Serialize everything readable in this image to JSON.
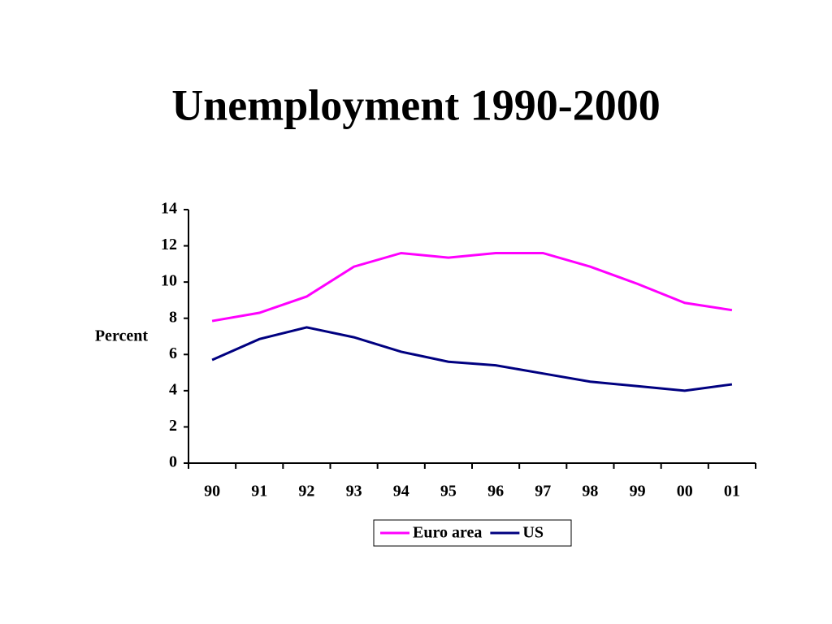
{
  "chart_data": {
    "type": "line",
    "title": "Unemployment 1990-2000",
    "y_label": "Percent",
    "categories": [
      "90",
      "91",
      "92",
      "93",
      "94",
      "95",
      "96",
      "97",
      "98",
      "99",
      "00",
      "01"
    ],
    "series": [
      {
        "name": "Euro area",
        "color": "#ff00ff",
        "values": [
          7.85,
          8.3,
          9.2,
          10.85,
          11.6,
          11.35,
          11.6,
          11.6,
          10.85,
          9.9,
          8.85,
          8.45
        ]
      },
      {
        "name": "US",
        "color": "#000080",
        "values": [
          5.7,
          6.85,
          7.5,
          6.95,
          6.15,
          5.6,
          5.4,
          4.95,
          4.5,
          4.25,
          4.0,
          4.35
        ]
      }
    ],
    "ylim": [
      0,
      14
    ],
    "yticks": [
      0,
      2,
      4,
      6,
      8,
      10,
      12,
      14
    ],
    "grid": false,
    "legend": "bottom"
  }
}
